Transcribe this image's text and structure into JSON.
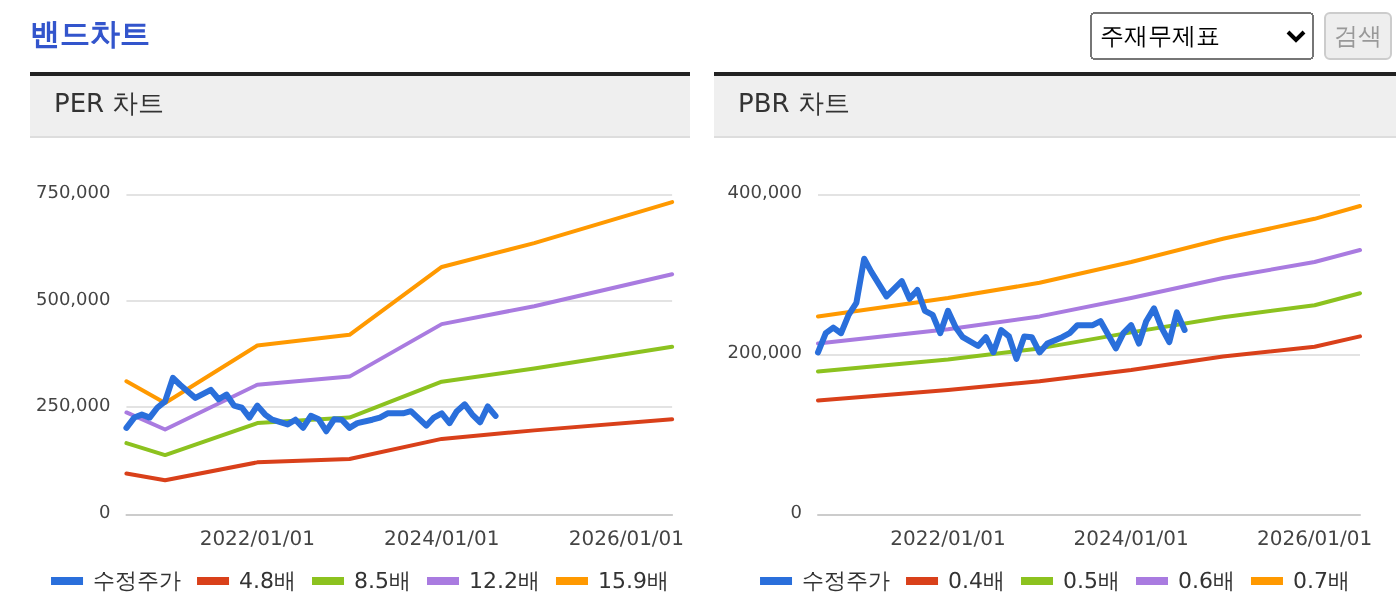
{
  "chart_data": [
    {
      "type": "other",
      "title": "밴드차트",
      "annotations": [
        "주재무제표",
        "검색"
      ]
    },
    {
      "type": "line",
      "title": "PER 차트",
      "xlim": [
        "2020-08",
        "2026-07"
      ],
      "ylim": [
        0,
        750000
      ],
      "xticks": [
        {
          "value": "2022-01-01",
          "label": "2022/01/01"
        },
        {
          "value": "2024-01-01",
          "label": "2024/01/01"
        },
        {
          "value": "2026-01-01",
          "label": "2026/01/01"
        }
      ],
      "yticks": [
        {
          "value": 0,
          "label": "0"
        },
        {
          "value": 250000,
          "label": "250,000"
        },
        {
          "value": 500000,
          "label": "500,000"
        },
        {
          "value": 750000,
          "label": "750,000"
        }
      ],
      "grid": "y",
      "legend": "bottom",
      "marker": "none",
      "line_style": "solid",
      "series": [
        {
          "name": "수정주가",
          "color": "#2a6fdb",
          "x": [
            "2020-08",
            "2020-09",
            "2020-10",
            "2020-11",
            "2020-12",
            "2021-01",
            "2021-02",
            "2021-03",
            "2021-05",
            "2021-07",
            "2021-08",
            "2021-09",
            "2021-10",
            "2021-11",
            "2021-12",
            "2022-01",
            "2022-02",
            "2022-03",
            "2022-05",
            "2022-06",
            "2022-07",
            "2022-08",
            "2022-09",
            "2022-10",
            "2022-11",
            "2022-12",
            "2023-01",
            "2023-02",
            "2023-04",
            "2023-05",
            "2023-06",
            "2023-08",
            "2023-09",
            "2023-11",
            "2023-12",
            "2024-01",
            "2024-02",
            "2024-03",
            "2024-04",
            "2024-05",
            "2024-06",
            "2024-07",
            "2024-08"
          ],
          "values": [
            202000,
            226000,
            233000,
            226000,
            249000,
            264000,
            319000,
            303000,
            272000,
            291000,
            269000,
            280000,
            254000,
            249000,
            226000,
            254000,
            233000,
            221000,
            210000,
            221000,
            202000,
            230000,
            222000,
            194000,
            222000,
            221000,
            202000,
            213000,
            221000,
            226000,
            236000,
            236000,
            241000,
            207000,
            226000,
            236000,
            213000,
            241000,
            257000,
            233000,
            215000,
            252000,
            230000
          ]
        },
        {
          "name": "4.8배",
          "color": "#d9401a",
          "x": [
            "2020-08",
            "2021-01",
            "2022-01",
            "2023-01",
            "2024-01",
            "2025-01",
            "2026-07"
          ],
          "values": [
            95000,
            79000,
            121000,
            129000,
            176000,
            196000,
            222000
          ]
        },
        {
          "name": "8.5배",
          "color": "#8cc21f",
          "x": [
            "2020-08",
            "2021-01",
            "2022-01",
            "2023-01",
            "2024-01",
            "2025-01",
            "2026-07"
          ],
          "values": [
            166000,
            138000,
            213000,
            226000,
            310000,
            341000,
            392000
          ]
        },
        {
          "name": "12.2배",
          "color": "#a97be0",
          "x": [
            "2020-08",
            "2021-01",
            "2022-01",
            "2023-01",
            "2024-01",
            "2025-01",
            "2026-07"
          ],
          "values": [
            238000,
            198000,
            303000,
            322000,
            445000,
            487000,
            562000
          ]
        },
        {
          "name": "15.9배",
          "color": "#ff9900",
          "x": [
            "2020-08",
            "2021-01",
            "2022-01",
            "2023-01",
            "2024-01",
            "2025-01",
            "2026-07"
          ],
          "values": [
            311000,
            260000,
            395000,
            420000,
            579000,
            635000,
            731000
          ]
        }
      ]
    },
    {
      "type": "line",
      "title": "PBR 차트",
      "xlim": [
        "2020-08",
        "2026-07"
      ],
      "ylim": [
        0,
        400000
      ],
      "xticks": [
        {
          "value": "2022-01-01",
          "label": "2022/01/01"
        },
        {
          "value": "2024-01-01",
          "label": "2024/01/01"
        },
        {
          "value": "2026-01-01",
          "label": "2026/01/01"
        }
      ],
      "yticks": [
        {
          "value": 0,
          "label": "0"
        },
        {
          "value": 200000,
          "label": "200,000"
        },
        {
          "value": 400000,
          "label": "400,000"
        }
      ],
      "grid": "y",
      "legend": "bottom",
      "marker": "none",
      "line_style": "solid",
      "series": [
        {
          "name": "수정주가",
          "color": "#2a6fdb",
          "x": [
            "2020-08",
            "2020-09",
            "2020-10",
            "2020-11",
            "2020-12",
            "2021-01",
            "2021-02",
            "2021-03",
            "2021-05",
            "2021-07",
            "2021-08",
            "2021-09",
            "2021-10",
            "2021-11",
            "2021-12",
            "2022-01",
            "2022-02",
            "2022-03",
            "2022-05",
            "2022-06",
            "2022-07",
            "2022-08",
            "2022-09",
            "2022-10",
            "2022-11",
            "2022-12",
            "2023-01",
            "2023-02",
            "2023-04",
            "2023-05",
            "2023-06",
            "2023-08",
            "2023-09",
            "2023-11",
            "2023-12",
            "2024-01",
            "2024-02",
            "2024-03",
            "2024-04",
            "2024-05",
            "2024-06",
            "2024-07",
            "2024-08"
          ],
          "values": [
            202000,
            226000,
            233000,
            226000,
            249000,
            264000,
            319000,
            303000,
            272000,
            291000,
            269000,
            280000,
            254000,
            249000,
            226000,
            254000,
            233000,
            221000,
            210000,
            221000,
            202000,
            230000,
            222000,
            194000,
            222000,
            221000,
            202000,
            213000,
            221000,
            226000,
            236000,
            236000,
            241000,
            207000,
            226000,
            236000,
            213000,
            241000,
            257000,
            233000,
            215000,
            252000,
            230000
          ]
        },
        {
          "name": "0.4배",
          "color": "#d9401a",
          "x": [
            "2020-08",
            "2022-01",
            "2023-01",
            "2024-01",
            "2025-01",
            "2026-01",
            "2026-07"
          ],
          "values": [
            142000,
            155000,
            166000,
            180000,
            197000,
            209000,
            222000
          ]
        },
        {
          "name": "0.5배",
          "color": "#8cc21f",
          "x": [
            "2020-08",
            "2022-01",
            "2023-01",
            "2024-01",
            "2025-01",
            "2026-01",
            "2026-07"
          ],
          "values": [
            178000,
            193000,
            207000,
            227000,
            246000,
            261000,
            276000
          ]
        },
        {
          "name": "0.6배",
          "color": "#a97be0",
          "x": [
            "2020-08",
            "2022-01",
            "2023-01",
            "2024-01",
            "2025-01",
            "2026-01",
            "2026-07"
          ],
          "values": [
            213000,
            231000,
            247000,
            270000,
            295000,
            315000,
            330000
          ]
        },
        {
          "name": "0.7배",
          "color": "#ff9900",
          "x": [
            "2020-08",
            "2022-01",
            "2023-01",
            "2024-01",
            "2025-01",
            "2026-01",
            "2026-07"
          ],
          "values": [
            247000,
            270000,
            289000,
            315000,
            344000,
            369000,
            385000
          ]
        }
      ]
    }
  ]
}
